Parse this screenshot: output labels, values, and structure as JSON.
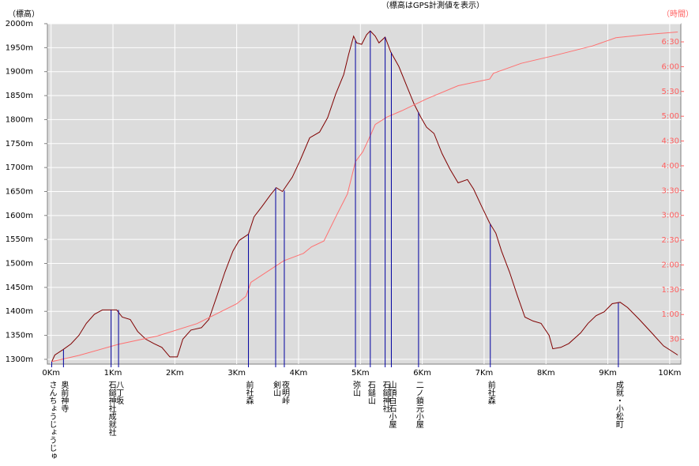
{
  "chart_data": {
    "type": "line",
    "title": "（標高はGPS計測値を表示）",
    "y_axis_label": "（標高）",
    "y2_axis_label": "（時間）",
    "xlim": [
      -0.06,
      10.18
    ],
    "xticks": [
      {
        "value": 0,
        "label": "0Km"
      },
      {
        "value": 1,
        "label": "1Km"
      },
      {
        "value": 2,
        "label": "2Km"
      },
      {
        "value": 3,
        "label": "3Km"
      },
      {
        "value": 4,
        "label": "4Km"
      },
      {
        "value": 5,
        "label": "5Km"
      },
      {
        "value": 6,
        "label": "6Km"
      },
      {
        "value": 7,
        "label": "7Km"
      },
      {
        "value": 8,
        "label": "8Km"
      },
      {
        "value": 9,
        "label": "9Km"
      },
      {
        "value": 10,
        "label": "10Km"
      }
    ],
    "ylim": [
      1290,
      2000
    ],
    "yticks": [
      {
        "value": 1300,
        "label": "1300m"
      },
      {
        "value": 1350,
        "label": "1350m"
      },
      {
        "value": 1400,
        "label": "1400m"
      },
      {
        "value": 1450,
        "label": "1450m"
      },
      {
        "value": 1500,
        "label": "1500m"
      },
      {
        "value": 1550,
        "label": "1550m"
      },
      {
        "value": 1600,
        "label": "1600m"
      },
      {
        "value": 1650,
        "label": "1650m"
      },
      {
        "value": 1700,
        "label": "1700m"
      },
      {
        "value": 1750,
        "label": "1750m"
      },
      {
        "value": 1800,
        "label": "1800m"
      },
      {
        "value": 1850,
        "label": "1850m"
      },
      {
        "value": 1900,
        "label": "1900m"
      },
      {
        "value": 1950,
        "label": "1950m"
      },
      {
        "value": 2000,
        "label": "2000m"
      }
    ],
    "y2lim": [
      0,
      412
    ],
    "y2ticks": [
      30,
      {
        "value": 60,
        "label": "1:00"
      },
      {
        "value": 90,
        "label": "1:30"
      },
      {
        "value": 120,
        "label": "2:00"
      },
      {
        "value": 150,
        "label": "2:30"
      },
      {
        "value": 180,
        "label": "3:00"
      },
      {
        "value": 210,
        "label": "3:30"
      },
      {
        "value": 240,
        "label": "4:00"
      },
      {
        "value": 270,
        "label": "4:30"
      },
      {
        "value": 300,
        "label": "5:00"
      },
      {
        "value": 330,
        "label": "5:30"
      },
      {
        "value": 360,
        "label": "6:00"
      },
      {
        "value": 390,
        "label": "6:30"
      }
    ],
    "grid": true,
    "series": [
      {
        "color": "#800000",
        "x": [
          0.01,
          0.06,
          0.19,
          0.32,
          0.45,
          0.57,
          0.7,
          0.83,
          0.96,
          1.06,
          1.15,
          1.28,
          1.4,
          1.53,
          1.66,
          1.79,
          1.92,
          2.04,
          2.13,
          2.26,
          2.43,
          2.55,
          2.68,
          2.81,
          2.94,
          3.04,
          3.19,
          3.28,
          3.41,
          3.54,
          3.64,
          3.74,
          3.9,
          4.02,
          4.18,
          4.34,
          4.47,
          4.6,
          4.73,
          4.81,
          4.89,
          4.94,
          5.02,
          5.1,
          5.16,
          5.24,
          5.3,
          5.4,
          5.49,
          5.62,
          5.75,
          5.87,
          5.98,
          6.07,
          6.19,
          6.32,
          6.45,
          6.58,
          6.73,
          6.83,
          6.96,
          7.09,
          7.19,
          7.28,
          7.41,
          7.54,
          7.66,
          7.79,
          7.92,
          8.05,
          8.11,
          8.24,
          8.37,
          8.56,
          8.68,
          8.81,
          8.94,
          9.07,
          9.2,
          9.32,
          9.51,
          9.71,
          9.9,
          10.13
        ],
        "values": [
          1295,
          1309,
          1320,
          1332,
          1350,
          1375,
          1394,
          1403,
          1403,
          1403,
          1388,
          1383,
          1358,
          1342,
          1333,
          1325,
          1305,
          1305,
          1342,
          1361,
          1366,
          1383,
          1432,
          1482,
          1526,
          1548,
          1561,
          1597,
          1619,
          1642,
          1658,
          1650,
          1680,
          1713,
          1762,
          1774,
          1804,
          1853,
          1894,
          1936,
          1974,
          1960,
          1957,
          1977,
          1985,
          1974,
          1960,
          1972,
          1941,
          1911,
          1870,
          1832,
          1804,
          1784,
          1771,
          1729,
          1696,
          1668,
          1675,
          1655,
          1619,
          1584,
          1563,
          1526,
          1482,
          1432,
          1388,
          1380,
          1375,
          1350,
          1322,
          1325,
          1333,
          1355,
          1375,
          1391,
          1399,
          1416,
          1419,
          1408,
          1383,
          1355,
          1328,
          1309
        ]
      },
      {
        "color": "#ff7070",
        "axis": "y2",
        "x": [
          0.01,
          0.45,
          1.09,
          1.72,
          2.36,
          3.0,
          3.15,
          3.23,
          3.76,
          4.08,
          4.21,
          4.41,
          4.6,
          4.79,
          4.92,
          5.04,
          5.17,
          5.24,
          5.43,
          5.68,
          6.07,
          6.58,
          7.09,
          7.15,
          7.6,
          8.11,
          8.75,
          9.13,
          9.64,
          10.13
        ],
        "values": [
          3,
          10.5,
          24,
          34,
          49,
          73,
          82,
          99,
          125,
          134,
          142,
          149,
          178,
          206,
          245,
          257,
          278,
          290,
          299,
          307,
          321,
          337,
          345,
          352,
          364,
          373,
          385,
          395,
          399,
          402
        ]
      }
    ],
    "waypoints": [
      {
        "label": "さんちょうじょうじゅ",
        "x": 0.01,
        "y": 1295
      },
      {
        "label": "奥前神寺",
        "x": 0.2,
        "y": 1320
      },
      {
        "label": "石鎚神社成就社",
        "x": 0.97,
        "y": 1403
      },
      {
        "label": "八丁坂",
        "x": 1.09,
        "y": 1403
      },
      {
        "label": "前社森",
        "x": 3.19,
        "y": 1561
      },
      {
        "label": "剣山",
        "x": 3.63,
        "y": 1658
      },
      {
        "label": "夜明峠",
        "x": 3.77,
        "y": 1652
      },
      {
        "label": "弥山",
        "x": 4.92,
        "y": 1965
      },
      {
        "label": "石鎚山",
        "x": 5.16,
        "y": 1985
      },
      {
        "label": "石鎚神社",
        "x": 5.4,
        "y": 1972
      },
      {
        "label": "山頂白石小屋",
        "x": 5.5,
        "y": 1940
      },
      {
        "label": "二ノ鎖元小屋",
        "x": 5.94,
        "y": 1815
      },
      {
        "label": "前社森",
        "x": 7.1,
        "y": 1582
      },
      {
        "label": "成就・小松町",
        "x": 9.17,
        "y": 1418
      }
    ]
  }
}
